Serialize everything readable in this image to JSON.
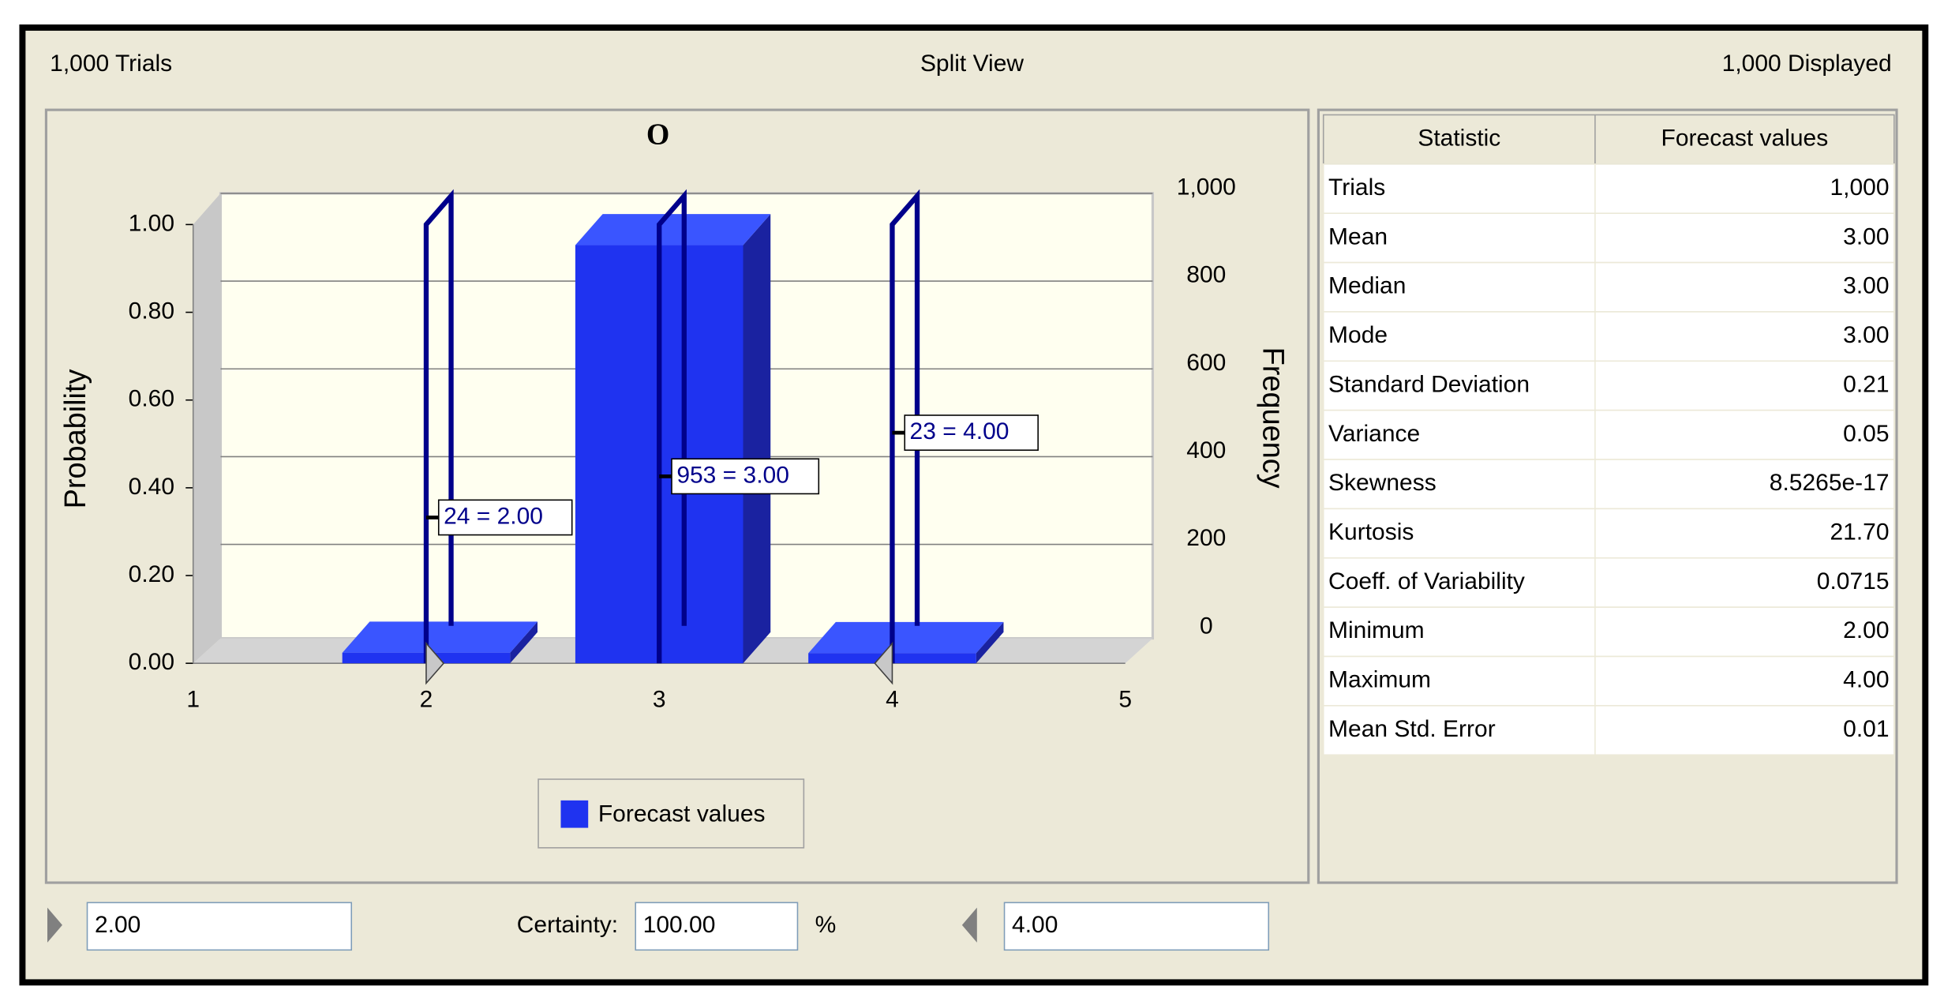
{
  "header": {
    "trials": "1,000 Trials",
    "view": "Split View",
    "displayed": "1,000 Displayed"
  },
  "chart_data": {
    "type": "bar",
    "title": "O",
    "y_label": "Probability",
    "y2_label": "Frequency",
    "x": [
      2,
      3,
      4
    ],
    "series": [
      {
        "name": "Forecast values",
        "color": "#1f33f0",
        "axis": "y2",
        "values": [
          24,
          953,
          23
        ],
        "value_labels": [
          "24 = 2.00",
          "953 = 3.00",
          "23 = 4.00"
        ]
      }
    ],
    "xlim": [
      1,
      5
    ],
    "xticks": [
      1,
      2,
      3,
      4,
      5
    ],
    "ylim": [
      0,
      1
    ],
    "yticks": [
      {
        "value": 0,
        "label": "0.00"
      },
      {
        "value": 0.2,
        "label": "0.20"
      },
      {
        "value": 0.4,
        "label": "0.40"
      },
      {
        "value": 0.6,
        "label": "0.60"
      },
      {
        "value": 0.8,
        "label": "0.80"
      },
      {
        "value": 1,
        "label": "1.00"
      }
    ],
    "y2lim": [
      0,
      1000
    ],
    "y2ticks": [
      0,
      200,
      400,
      600,
      800,
      {
        "value": 1000,
        "label": "1,000"
      }
    ],
    "grid": true
  },
  "table": {
    "columns": [
      "Statistic",
      "Forecast values"
    ],
    "rows": [
      [
        "Trials",
        "1,000"
      ],
      [
        "Mean",
        "3.00"
      ],
      [
        "Median",
        "3.00"
      ],
      [
        "Mode",
        "3.00"
      ],
      [
        "Standard Deviation",
        "0.21"
      ],
      [
        "Variance",
        "0.05"
      ],
      [
        "Skewness",
        "8.5265e-17"
      ],
      [
        "Kurtosis",
        "21.70"
      ],
      [
        "Coeff. of Variability",
        "0.0715"
      ],
      [
        "Minimum",
        "2.00"
      ],
      [
        "Maximum",
        "4.00"
      ],
      [
        "Mean Std. Error",
        "0.01"
      ]
    ]
  },
  "footer": {
    "lower": "2.00",
    "certainty_label": "Certainty:",
    "certainty": "100.00",
    "unit": "%",
    "upper": "4.00"
  }
}
